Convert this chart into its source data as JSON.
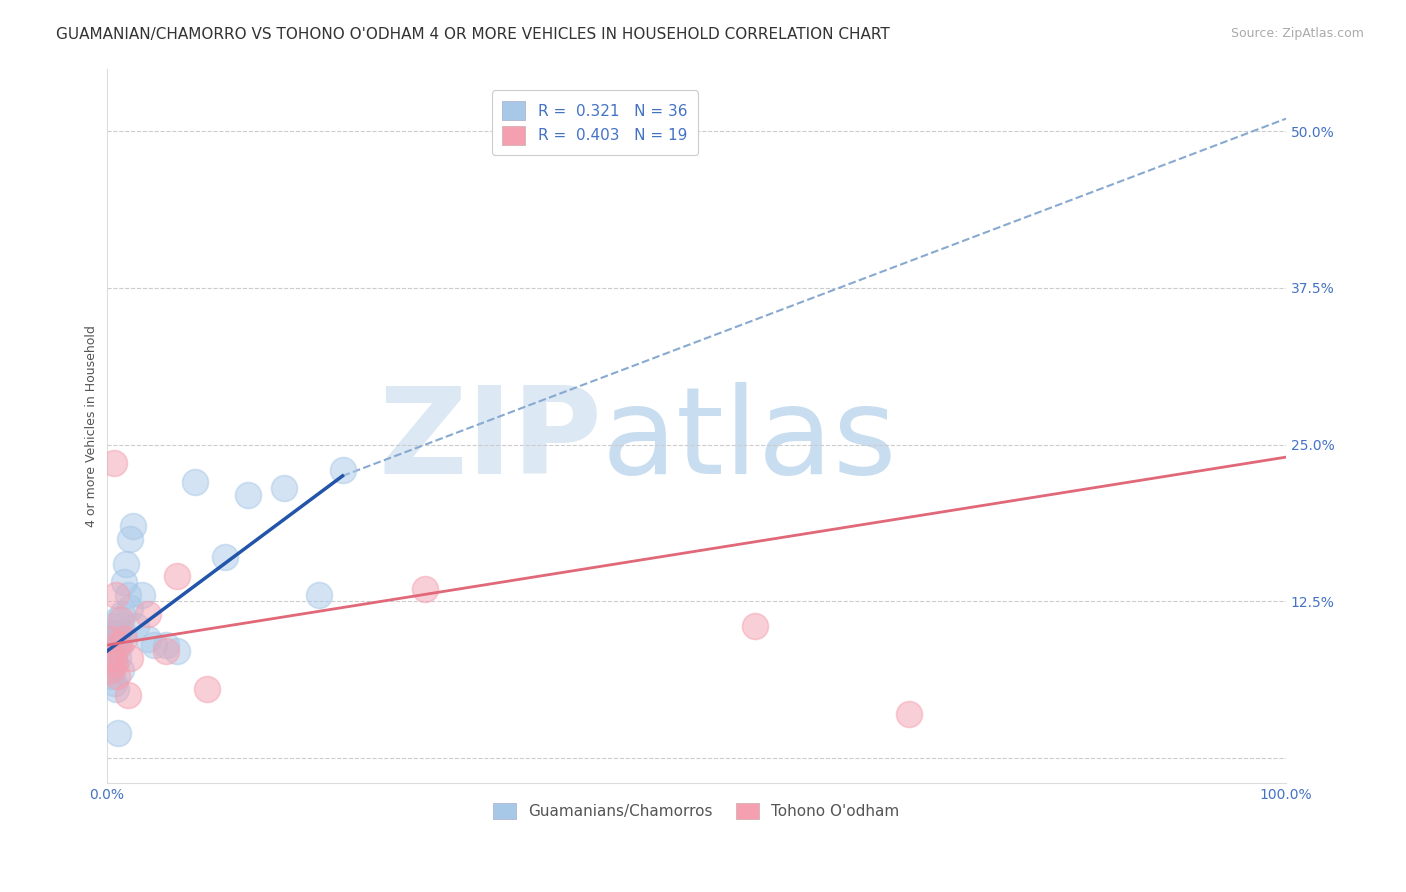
{
  "title": "GUAMANIAN/CHAMORRO VS TOHONO O'ODHAM 4 OR MORE VEHICLES IN HOUSEHOLD CORRELATION CHART",
  "source": "Source: ZipAtlas.com",
  "ylabel": "4 or more Vehicles in Household",
  "xlim": [
    0.0,
    100.0
  ],
  "ylim": [
    -2.0,
    55.0
  ],
  "yticks": [
    0.0,
    12.5,
    25.0,
    37.5,
    50.0
  ],
  "yticklabels": [
    "",
    "12.5%",
    "25.0%",
    "37.5%",
    "50.0%"
  ],
  "blue_legend": "R =  0.321   N = 36",
  "pink_legend": "R =  0.403   N = 19",
  "blue_color": "#a8c8e8",
  "pink_color": "#f4a0b0",
  "blue_line_solid_color": "#2255aa",
  "blue_line_dash_color": "#88aad0",
  "pink_line_color": "#e06878",
  "watermark_zip": "ZIP",
  "watermark_atlas": "atlas",
  "blue_scatter_x": [
    0.3,
    0.4,
    0.5,
    0.5,
    0.6,
    0.7,
    0.8,
    0.9,
    1.0,
    1.0,
    1.1,
    1.2,
    1.3,
    1.4,
    1.5,
    1.6,
    1.8,
    2.0,
    2.0,
    2.2,
    2.5,
    3.0,
    3.5,
    4.0,
    5.0,
    6.0,
    7.5,
    10.0,
    12.0,
    15.0,
    18.0,
    20.0,
    0.4,
    0.6,
    0.8,
    1.0
  ],
  "blue_scatter_y": [
    8.5,
    7.5,
    9.0,
    10.5,
    8.0,
    10.0,
    9.5,
    11.0,
    10.0,
    8.0,
    9.0,
    7.0,
    11.5,
    10.0,
    14.0,
    15.5,
    13.0,
    12.0,
    17.5,
    18.5,
    10.5,
    13.0,
    9.5,
    9.0,
    9.0,
    8.5,
    22.0,
    16.0,
    21.0,
    21.5,
    13.0,
    23.0,
    6.5,
    6.0,
    5.5,
    2.0
  ],
  "pink_scatter_x": [
    0.3,
    0.5,
    0.6,
    0.7,
    0.8,
    1.0,
    1.2,
    1.5,
    2.0,
    3.5,
    5.0,
    6.0,
    8.5,
    27.0,
    55.0,
    68.0,
    0.4,
    0.9,
    1.8
  ],
  "pink_scatter_y": [
    9.5,
    8.0,
    23.5,
    7.5,
    13.0,
    9.0,
    11.0,
    9.5,
    8.0,
    11.5,
    8.5,
    14.5,
    5.5,
    13.5,
    10.5,
    3.5,
    7.0,
    6.5,
    5.0
  ],
  "blue_solid_x0": 0.0,
  "blue_solid_x1": 20.0,
  "blue_solid_y0": 8.5,
  "blue_solid_y1": 22.5,
  "blue_dash_x0": 20.0,
  "blue_dash_x1": 100.0,
  "blue_dash_y0": 22.5,
  "blue_dash_y1": 51.0,
  "pink_line_x0": 0.0,
  "pink_line_x1": 100.0,
  "pink_line_y0": 9.0,
  "pink_line_y1": 24.0,
  "grid_color": "#cccccc",
  "background_color": "#ffffff",
  "title_fontsize": 11,
  "axis_label_fontsize": 9,
  "tick_fontsize": 10,
  "legend_fontsize": 11,
  "source_fontsize": 9,
  "tick_color": "#4472c4",
  "watermark_color": "#dce8f4"
}
